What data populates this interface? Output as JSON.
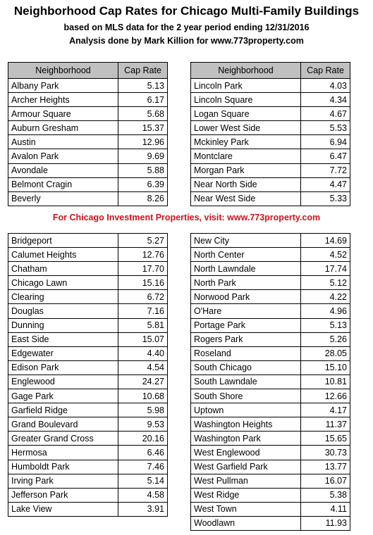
{
  "header": {
    "title": "Neighborhood Cap Rates for Chicago Multi-Family Buildings",
    "subtitle": "based on MLS data for the 2 year period ending 12/31/2016",
    "credit": "Analysis done by Mark Killion for www.773property.com"
  },
  "promo": "For Chicago Investment Properties, visit:  www.773property.com",
  "columns": {
    "neighborhood": "Neighborhood",
    "cap_rate": "Cap Rate"
  },
  "top_left": [
    {
      "name": "Albany Park",
      "rate": "5.13"
    },
    {
      "name": "Archer Heights",
      "rate": "6.17"
    },
    {
      "name": "Armour Square",
      "rate": "5.68"
    },
    {
      "name": "Auburn Gresham",
      "rate": "15.37"
    },
    {
      "name": "Austin",
      "rate": "12.96"
    },
    {
      "name": "Avalon Park",
      "rate": "9.69"
    },
    {
      "name": "Avondale",
      "rate": "5.88"
    },
    {
      "name": "Belmont Cragin",
      "rate": "6.39"
    },
    {
      "name": "Beverly",
      "rate": "8.26"
    }
  ],
  "top_right": [
    {
      "name": "Lincoln Park",
      "rate": "4.03"
    },
    {
      "name": "Lincoln Square",
      "rate": "4.34"
    },
    {
      "name": "Logan Square",
      "rate": "4.67"
    },
    {
      "name": "Lower West Side",
      "rate": "5.53"
    },
    {
      "name": "Mckinley Park",
      "rate": "6.94"
    },
    {
      "name": "Montclare",
      "rate": "6.47"
    },
    {
      "name": "Morgan Park",
      "rate": "7.72"
    },
    {
      "name": "Near North Side",
      "rate": "4.47"
    },
    {
      "name": "Near West Side",
      "rate": "5.33"
    }
  ],
  "bottom_left": [
    {
      "name": "Bridgeport",
      "rate": "5.27"
    },
    {
      "name": "Calumet Heights",
      "rate": "12.76"
    },
    {
      "name": "Chatham",
      "rate": "17.70"
    },
    {
      "name": "Chicago Lawn",
      "rate": "15.16"
    },
    {
      "name": "Clearing",
      "rate": "6.72"
    },
    {
      "name": "Douglas",
      "rate": "7.16"
    },
    {
      "name": "Dunning",
      "rate": "5.81"
    },
    {
      "name": "East Side",
      "rate": "15.07"
    },
    {
      "name": "Edgewater",
      "rate": "4.40"
    },
    {
      "name": "Edison Park",
      "rate": "4.54"
    },
    {
      "name": "Englewood",
      "rate": "24.27"
    },
    {
      "name": "Gage Park",
      "rate": "10.68"
    },
    {
      "name": "Garfield Ridge",
      "rate": "5.98"
    },
    {
      "name": "Grand Boulevard",
      "rate": "9.53"
    },
    {
      "name": "Greater Grand Cross",
      "rate": "20.16"
    },
    {
      "name": "Hermosa",
      "rate": "6.46"
    },
    {
      "name": "Humboldt Park",
      "rate": "7.46"
    },
    {
      "name": "Irving Park",
      "rate": "5.14"
    },
    {
      "name": "Jefferson Park",
      "rate": "4.58"
    },
    {
      "name": "Lake View",
      "rate": "3.91"
    }
  ],
  "bottom_right": [
    {
      "name": "New City",
      "rate": "14.69"
    },
    {
      "name": "North Center",
      "rate": "4.52"
    },
    {
      "name": "North Lawndale",
      "rate": "17.74"
    },
    {
      "name": "North Park",
      "rate": "5.12"
    },
    {
      "name": "Norwood Park",
      "rate": "4.22"
    },
    {
      "name": "O'Hare",
      "rate": "4.96"
    },
    {
      "name": "Portage Park",
      "rate": "5.13"
    },
    {
      "name": "Rogers Park",
      "rate": "5.26"
    },
    {
      "name": "Roseland",
      "rate": "28.05"
    },
    {
      "name": "South Chicago",
      "rate": "15.10"
    },
    {
      "name": "South Lawndale",
      "rate": "10.81"
    },
    {
      "name": "South Shore",
      "rate": "12.66"
    },
    {
      "name": "Uptown",
      "rate": "4.17"
    },
    {
      "name": "Washington Heights",
      "rate": "11.37"
    },
    {
      "name": "Washington Park",
      "rate": "15.65"
    },
    {
      "name": "West Englewood",
      "rate": "30.73"
    },
    {
      "name": "West Garfield Park",
      "rate": "13.77"
    },
    {
      "name": "West Pullman",
      "rate": "16.07"
    },
    {
      "name": "West Ridge",
      "rate": "5.38"
    },
    {
      "name": "West Town",
      "rate": "4.11"
    },
    {
      "name": "Woodlawn",
      "rate": "11.93"
    }
  ]
}
